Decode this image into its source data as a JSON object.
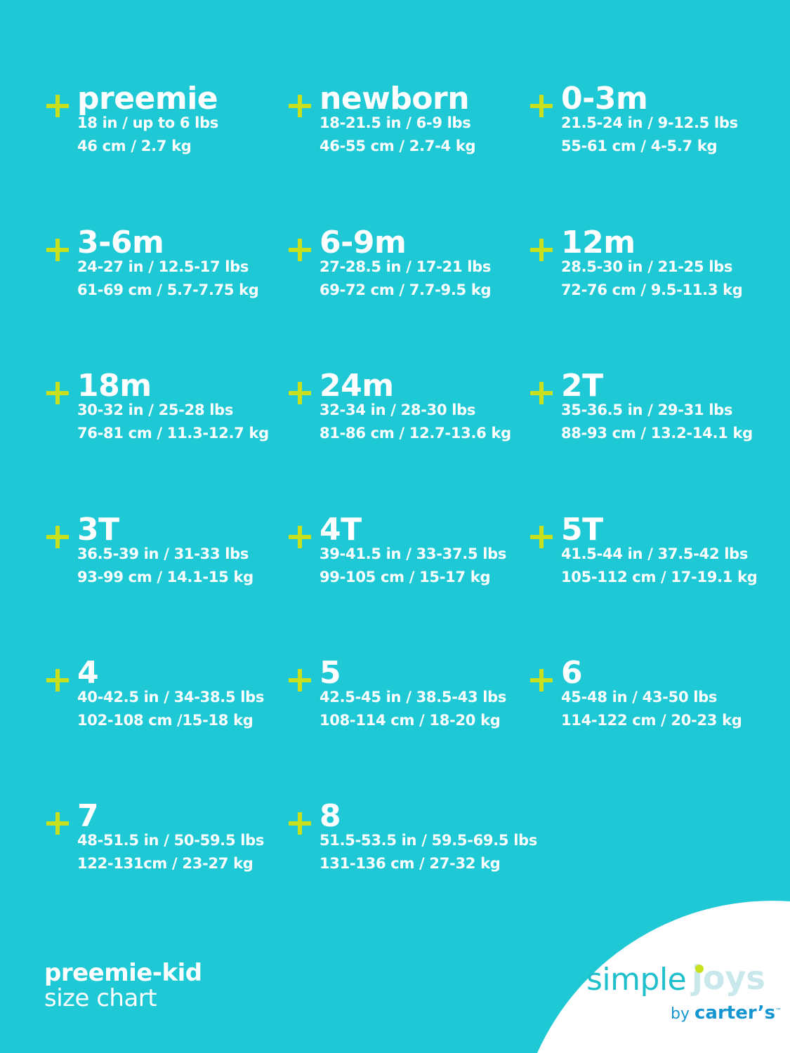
{
  "colors": {
    "background": "#1ec8d4",
    "plus": "#c9e01e",
    "text": "#ffffff"
  },
  "sizes": [
    {
      "name": "preemie",
      "line1": "18 in / up to 6 lbs",
      "line2": "46 cm / 2.7 kg"
    },
    {
      "name": "newborn",
      "line1": "18-21.5 in / 6-9 lbs",
      "line2": "46-55 cm / 2.7-4 kg"
    },
    {
      "name": "0-3m",
      "line1": "21.5-24 in / 9-12.5 lbs",
      "line2": "55-61 cm / 4-5.7  kg"
    },
    {
      "name": "3-6m",
      "line1": "24-27 in / 12.5-17 lbs",
      "line2": "61-69 cm / 5.7-7.75 kg"
    },
    {
      "name": "6-9m",
      "line1": "27-28.5 in / 17-21 lbs",
      "line2": "69-72 cm / 7.7-9.5 kg"
    },
    {
      "name": "12m",
      "line1": "28.5-30 in / 21-25 lbs",
      "line2": "72-76 cm / 9.5-11.3 kg"
    },
    {
      "name": "18m",
      "line1": "30-32 in / 25-28 lbs",
      "line2": "76-81 cm / 11.3-12.7 kg"
    },
    {
      "name": "24m",
      "line1": "32-34 in / 28-30 lbs",
      "line2": "81-86 cm / 12.7-13.6 kg"
    },
    {
      "name": "2T",
      "line1": "35-36.5 in / 29-31 lbs",
      "line2": "88-93 cm / 13.2-14.1 kg"
    },
    {
      "name": "3T",
      "line1": "36.5-39 in / 31-33 lbs",
      "line2": "93-99 cm / 14.1-15 kg"
    },
    {
      "name": "4T",
      "line1": "39-41.5 in / 33-37.5 lbs",
      "line2": "99-105 cm / 15-17 kg"
    },
    {
      "name": "5T",
      "line1": "41.5-44 in / 37.5-42 lbs",
      "line2": "105-112 cm / 17-19.1 kg"
    },
    {
      "name": "4",
      "line1": "40-42.5 in / 34-38.5 lbs",
      "line2": "102-108 cm /15-18 kg"
    },
    {
      "name": "5",
      "line1": "42.5-45 in / 38.5-43 lbs",
      "line2": "108-114 cm / 18-20 kg"
    },
    {
      "name": "6",
      "line1": "45-48 in / 43-50 lbs",
      "line2": "114-122 cm / 20-23 kg"
    },
    {
      "name": "7",
      "line1": "48-51.5 in / 50-59.5 lbs",
      "line2": "122-131cm / 23-27 kg"
    },
    {
      "name": "8",
      "line1": "51.5-53.5 in / 59.5-69.5 lbs",
      "line2": "131-136 cm / 27-32 kg"
    }
  ],
  "footer": {
    "title": "preemie-kid",
    "subtitle": "size chart"
  },
  "logo": {
    "simple": "simple",
    "joys": "joys",
    "by": "by",
    "brand": "carter’s",
    "tm": "™"
  }
}
